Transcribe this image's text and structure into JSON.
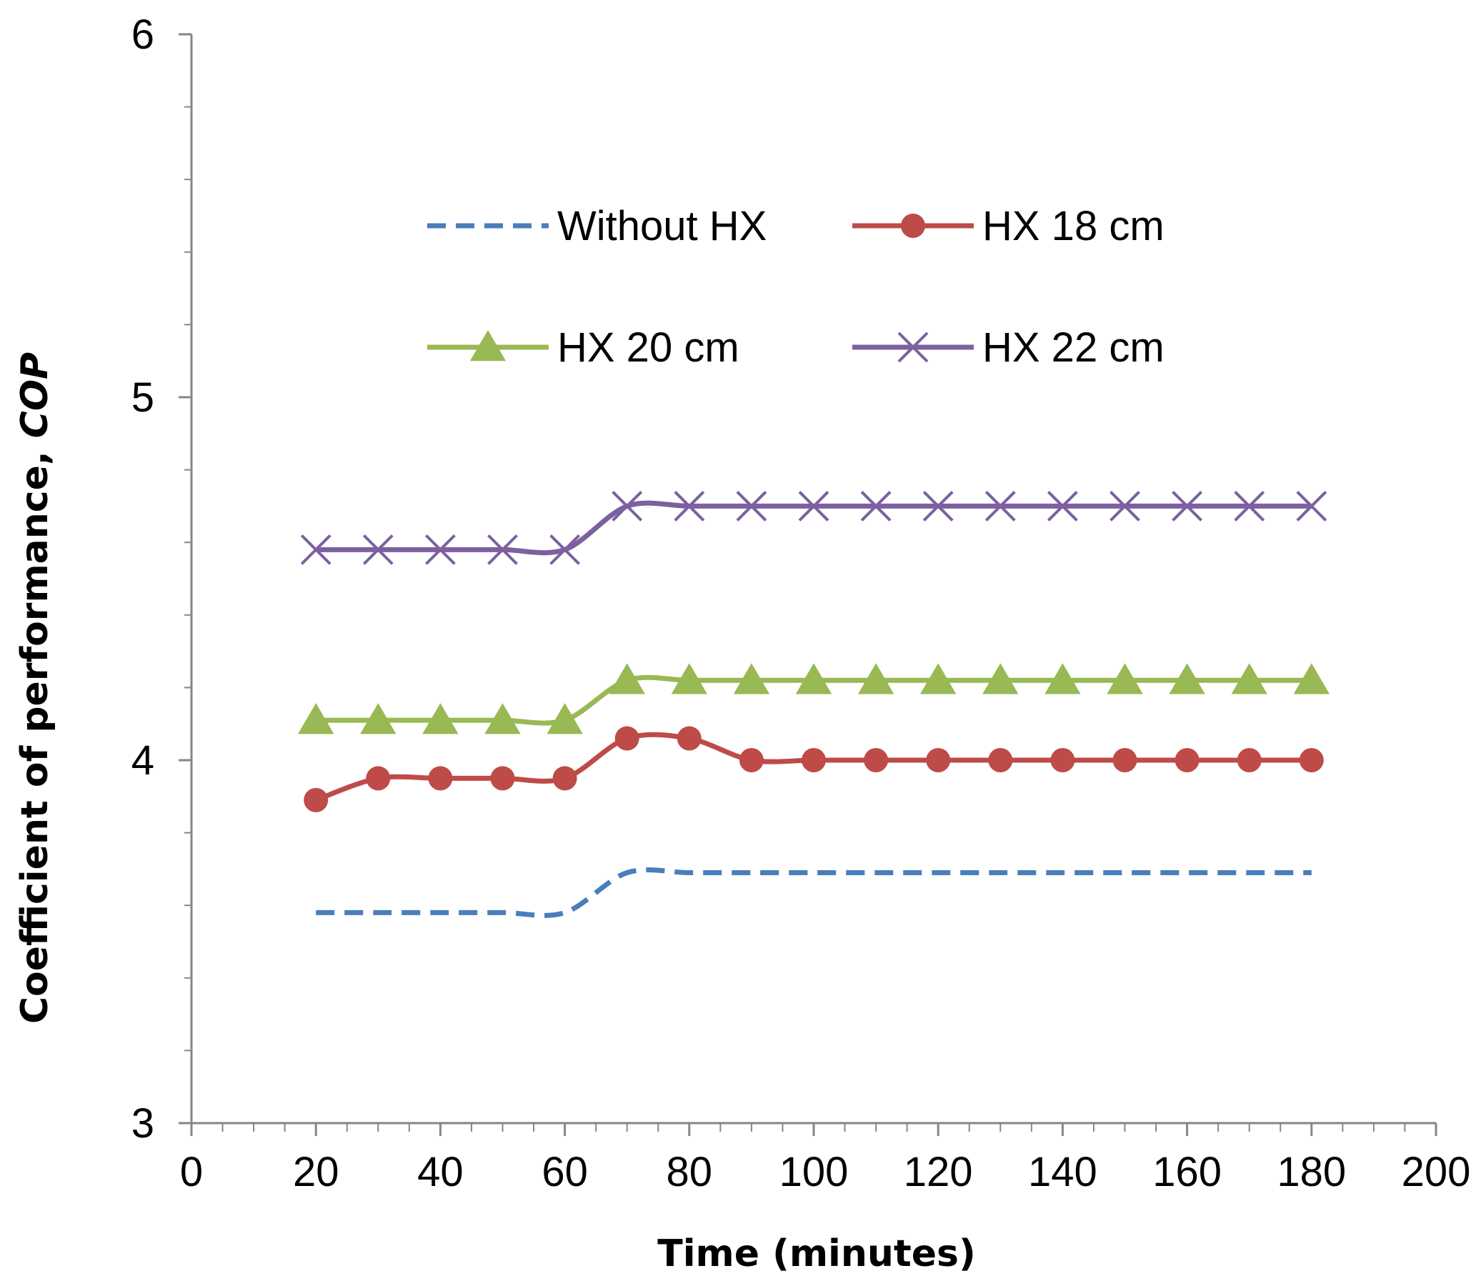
{
  "chart_data": {
    "type": "line",
    "title": "",
    "xlabel": "Time (minutes)",
    "ylabel_main": "Coefficient of performance, ",
    "ylabel_italic": "COP",
    "xlim": [
      0,
      200
    ],
    "ylim": [
      3,
      6
    ],
    "x_ticks": [
      "0",
      "20",
      "40",
      "60",
      "80",
      "100",
      "120",
      "140",
      "160",
      "180",
      "200"
    ],
    "y_ticks": [
      "3",
      "4",
      "5",
      "6"
    ],
    "grid": false,
    "legend_position": "upper-center",
    "x": [
      20,
      30,
      40,
      50,
      60,
      70,
      80,
      90,
      100,
      110,
      120,
      130,
      140,
      150,
      160,
      170,
      180
    ],
    "series": [
      {
        "name": "Without HX",
        "color": "#4A7EBB",
        "style": "dashed",
        "marker": "none",
        "values": [
          3.58,
          3.58,
          3.58,
          3.58,
          3.58,
          3.69,
          3.69,
          3.69,
          3.69,
          3.69,
          3.69,
          3.69,
          3.69,
          3.69,
          3.69,
          3.69,
          3.69
        ]
      },
      {
        "name": "HX 18 cm",
        "color": "#BE4B48",
        "style": "solid",
        "marker": "circle",
        "values": [
          3.89,
          3.95,
          3.95,
          3.95,
          3.95,
          4.06,
          4.06,
          4.0,
          4.0,
          4.0,
          4.0,
          4.0,
          4.0,
          4.0,
          4.0,
          4.0,
          4.0
        ]
      },
      {
        "name": "HX 20 cm",
        "color": "#98B954",
        "style": "solid",
        "marker": "triangle",
        "values": [
          4.11,
          4.11,
          4.11,
          4.11,
          4.11,
          4.22,
          4.22,
          4.22,
          4.22,
          4.22,
          4.22,
          4.22,
          4.22,
          4.22,
          4.22,
          4.22,
          4.22
        ]
      },
      {
        "name": "HX 22 cm",
        "color": "#7D60A0",
        "style": "solid",
        "marker": "x",
        "values": [
          4.58,
          4.58,
          4.58,
          4.58,
          4.58,
          4.7,
          4.7,
          4.7,
          4.7,
          4.7,
          4.7,
          4.7,
          4.7,
          4.7,
          4.7,
          4.7,
          4.7
        ]
      }
    ]
  }
}
